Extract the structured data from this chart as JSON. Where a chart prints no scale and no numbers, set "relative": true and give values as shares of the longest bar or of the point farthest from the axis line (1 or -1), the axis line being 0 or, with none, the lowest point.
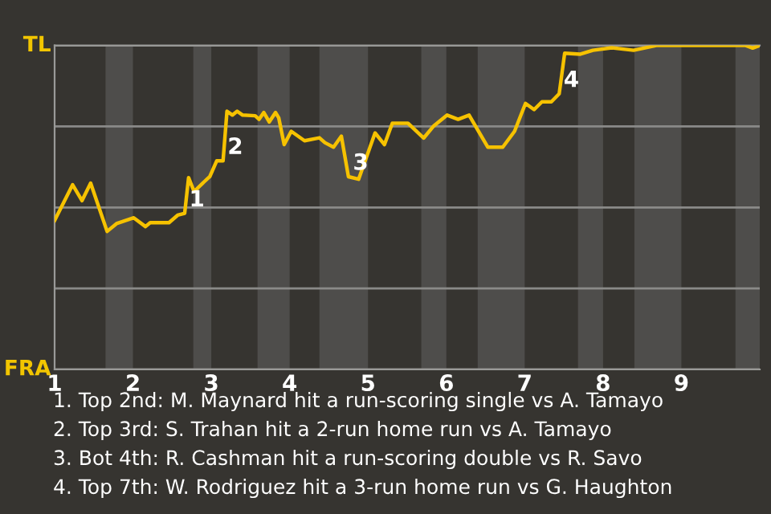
{
  "chart_data": {
    "type": "line",
    "relative": true,
    "x": [
      1.0,
      1.23,
      1.35,
      1.46,
      1.67,
      1.79,
      2.01,
      2.16,
      2.22,
      2.46,
      2.57,
      2.66,
      2.71,
      2.78,
      2.89,
      2.98,
      3.07,
      3.15,
      3.2,
      3.27,
      3.33,
      3.4,
      3.56,
      3.61,
      3.67,
      3.74,
      3.82,
      3.86,
      3.93,
      4.02,
      4.19,
      4.38,
      4.45,
      4.56,
      4.66,
      4.75,
      4.88,
      5.09,
      5.21,
      5.31,
      5.51,
      5.71,
      5.84,
      6.01,
      6.15,
      6.29,
      6.53,
      6.72,
      6.87,
      7.01,
      7.12,
      7.22,
      7.34,
      7.44,
      7.51,
      7.71,
      7.87,
      8.11,
      8.39,
      8.68,
      9.06,
      9.82,
      9.91,
      10.0
    ],
    "series": [
      {
        "color": "#f6c200",
        "values": [
          0.46,
          0.57,
          0.521,
          0.575,
          0.426,
          0.45,
          0.468,
          0.441,
          0.453,
          0.453,
          0.476,
          0.482,
          0.592,
          0.549,
          0.575,
          0.595,
          0.644,
          0.644,
          0.797,
          0.785,
          0.797,
          0.785,
          0.783,
          0.772,
          0.793,
          0.764,
          0.793,
          0.777,
          0.694,
          0.735,
          0.706,
          0.715,
          0.7,
          0.686,
          0.72,
          0.595,
          0.587,
          0.73,
          0.694,
          0.76,
          0.76,
          0.714,
          0.752,
          0.785,
          0.772,
          0.785,
          0.686,
          0.686,
          0.735,
          0.821,
          0.802,
          0.826,
          0.826,
          0.851,
          0.976,
          0.973,
          0.985,
          0.993,
          0.985,
          1.0,
          1.0,
          1.0,
          0.992,
          1.0
        ]
      }
    ],
    "xlim": [
      1,
      10
    ],
    "xticks": [
      1,
      2,
      3,
      4,
      5,
      6,
      7,
      8,
      9
    ],
    "grid": "y",
    "bands": [
      {
        "axis": "x",
        "from": 1.65,
        "to": 2.0,
        "color": "#4e4d4b"
      },
      {
        "axis": "x",
        "from": 2.77,
        "to": 3.0,
        "color": "#4e4d4b"
      },
      {
        "axis": "x",
        "from": 3.59,
        "to": 4.0,
        "color": "#4e4d4b"
      },
      {
        "axis": "x",
        "from": 4.38,
        "to": 5.0,
        "color": "#4e4d4b"
      },
      {
        "axis": "x",
        "from": 5.68,
        "to": 6.0,
        "color": "#4e4d4b"
      },
      {
        "axis": "x",
        "from": 6.4,
        "to": 7.0,
        "color": "#4e4d4b"
      },
      {
        "axis": "x",
        "from": 7.68,
        "to": 8.0,
        "color": "#4e4d4b"
      },
      {
        "axis": "x",
        "from": 8.4,
        "to": 9.0,
        "color": "#4e4d4b"
      },
      {
        "axis": "x",
        "from": 9.69,
        "to": 10.0,
        "color": "#4e4d4b"
      }
    ],
    "annotations": [
      "TL",
      "FRA",
      {
        "text": "1",
        "x": 2.66,
        "y": 0.482
      },
      {
        "text": "2",
        "x": 3.15,
        "y": 0.644
      },
      {
        "text": "3",
        "x": 4.75,
        "y": 0.595
      },
      {
        "text": "4",
        "x": 7.44,
        "y": 0.851
      },
      "1. Top 2nd: M. Maynard hit a run-scoring single vs A. Tamayo",
      "2. Top 3rd: S. Trahan hit a 2-run home run vs A. Tamayo",
      "3. Bot 4th: R. Cashman hit a run-scoring double vs R. Savo",
      "4. Top 7th: W. Rodriguez hit a 3-run home run vs G. Haughton"
    ]
  }
}
